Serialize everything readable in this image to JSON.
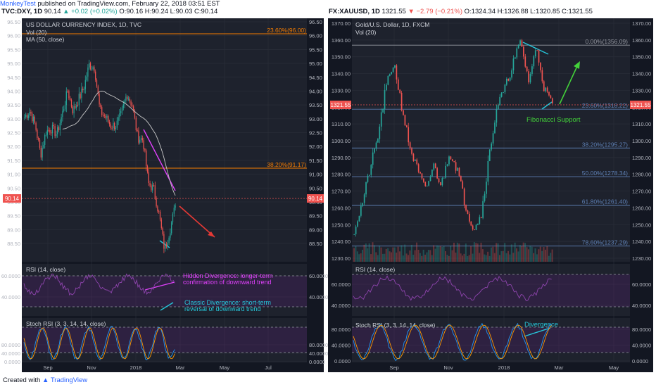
{
  "header": {
    "publisher": "MonkeyTest",
    "published_text": "published on TradingView.com, February 22, 2018 03:51 EST"
  },
  "left": {
    "ticker_line": "TVC:DXY, 1D",
    "last": "90.14",
    "change": "▲ +0.02 (+0.02%)",
    "ohlc": "O:90.16 H:90.24 L:90.03 C:90.14",
    "title": "US DOLLAR CURRENCY INDEX, 1D, TVC",
    "vol": "Vol (20)",
    "ma": "MA (50, close)",
    "price_label": "90.14",
    "fib_top": "23.60%(96.00)",
    "fib_mid": "38.20%(91.17)",
    "rsi_label": "RSI (14, close)",
    "stoch_label": "Stoch RSI (3, 3, 14, 14, close)",
    "hidden_div": [
      "Hidden Divergence: longer-term",
      "confirmation of downward trend"
    ],
    "classic_div": [
      "Classic Divergence: short-term",
      "reversal of downward trend"
    ],
    "price_ticks": [
      "96.50",
      "96.00",
      "95.50",
      "95.00",
      "94.50",
      "94.00",
      "93.50",
      "93.00",
      "92.50",
      "92.00",
      "91.50",
      "91.00",
      "90.50",
      "90.00",
      "89.50",
      "89.00",
      "88.50"
    ],
    "rsi_ticks": [
      "60.0000",
      "40.0000"
    ],
    "stoch_ticks": [
      "80.0000",
      "40.0000",
      "0.0000"
    ],
    "x_labels": [
      "Sep",
      "Nov",
      "2018",
      "Mar",
      "May",
      "Jul"
    ]
  },
  "right": {
    "ticker_line": "FX:XAUUSD, 1D",
    "last": "1321.55",
    "change": "▼ −2.79 (−0.21%)",
    "ohlc": "O:1324.34 H:1326.88 L:1320.85 C:1321.55",
    "title": "Gold/U.S. Dollar, 1D, FXCM",
    "vol": "Vol (20)",
    "price_label": "1321.55",
    "fib_levels": [
      "0.00%(1356.09)",
      "23.60%(1318.22)",
      "38.20%(1295.27)",
      "50.00%(1278.34)",
      "61.80%(1261.40)",
      "78.60%(1237.29)"
    ],
    "fib_support": "Fibonacci Support",
    "divergence": "Divergence",
    "rsi_label": "RSI (14, close)",
    "stoch_label": "Stoch RSI (3, 3, 14, 14, close)",
    "price_ticks": [
      "1370.00",
      "1360.00",
      "1350.00",
      "1340.00",
      "1330.00",
      "1320.00",
      "1310.00",
      "1300.00",
      "1290.00",
      "1280.00",
      "1270.00",
      "1260.00",
      "1250.00",
      "1240.00",
      "1230.00"
    ],
    "rsi_ticks": [
      "60.0000",
      "40.0000"
    ],
    "stoch_ticks": [
      "80.0000",
      "40.0000",
      "0.0000"
    ],
    "x_labels": [
      "Sep",
      "Nov",
      "2018",
      "Mar",
      "May"
    ]
  },
  "footer": {
    "created_with": "Created with",
    "brand": "TradingView"
  },
  "colors": {
    "bg": "#131722",
    "up": "#26a69a",
    "down": "#ef5350",
    "fib": "#f57c00",
    "magenta": "#e040fb",
    "cyan": "#26c6da",
    "red": "#e53935",
    "green": "#43d13a"
  },
  "chart_data": [
    {
      "type": "candlestick",
      "title": "US DOLLAR CURRENCY INDEX, 1D, TVC",
      "ylim": [
        88.2,
        96.6
      ],
      "indicators": [
        "Vol (20)",
        "MA (50, close)",
        "RSI (14, close)",
        "Stoch RSI (3, 3, 14, 14, close)"
      ],
      "fibonacci": [
        {
          "level": "23.60%",
          "value": 96.0
        },
        {
          "level": "38.20%",
          "value": 91.17
        }
      ],
      "last_close": 90.14,
      "x_labels": [
        "Sep",
        "Nov",
        "2018",
        "Mar",
        "May",
        "Jul"
      ]
    },
    {
      "type": "candlestick",
      "title": "Gold/U.S. Dollar, 1D, FXCM",
      "ylim": [
        1228,
        1372
      ],
      "indicators": [
        "Vol (20)",
        "RSI (14, close)",
        "Stoch RSI (3, 3, 14, 14, close)"
      ],
      "fibonacci": [
        {
          "level": "0.00%",
          "value": 1356.09
        },
        {
          "level": "23.60%",
          "value": 1318.22
        },
        {
          "level": "38.20%",
          "value": 1295.27
        },
        {
          "level": "50.00%",
          "value": 1278.34
        },
        {
          "level": "61.80%",
          "value": 1261.4
        },
        {
          "level": "78.60%",
          "value": 1237.29
        }
      ],
      "last_close": 1321.55,
      "x_labels": [
        "Sep",
        "Nov",
        "2018",
        "Mar",
        "May"
      ]
    }
  ]
}
